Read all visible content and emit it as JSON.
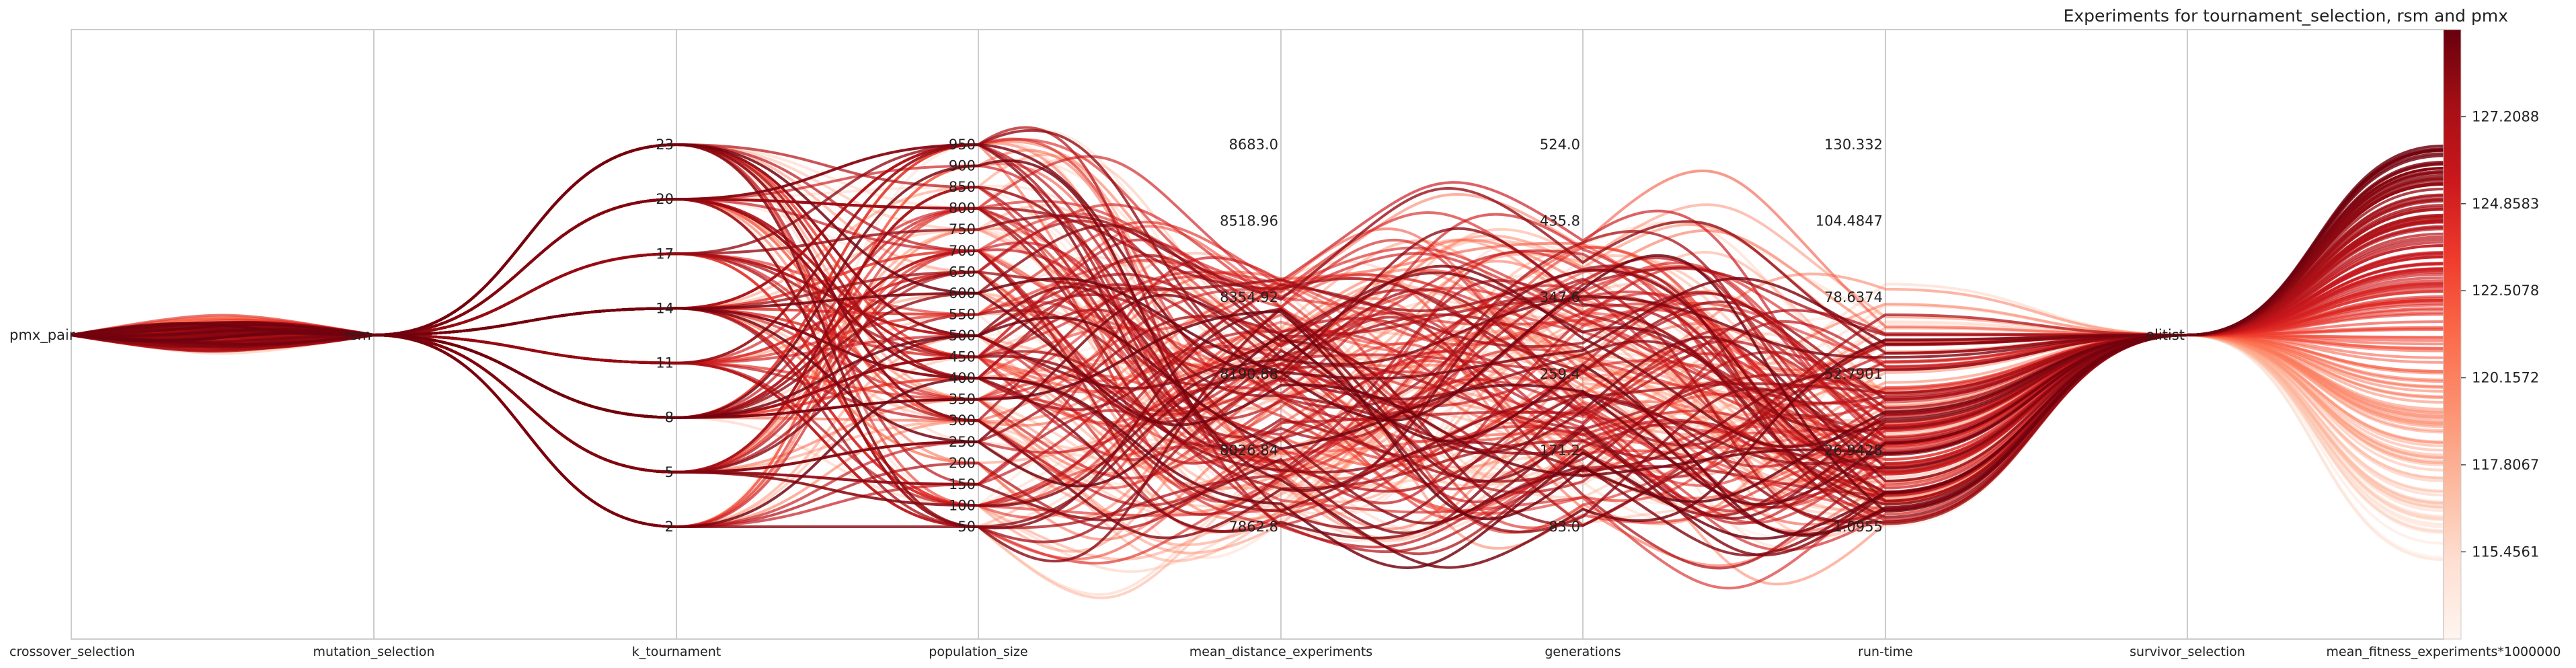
{
  "chart_data": {
    "type": "parallel_coordinates",
    "title": "Experiments for tournament_selection, rsm and pmx",
    "colormap": "Reds",
    "axes": [
      {
        "name": "crossover_selection",
        "ticks": [
          "pmx_pair"
        ],
        "values": [
          0
        ]
      },
      {
        "name": "mutation_selection",
        "ticks": [
          "rsm"
        ],
        "values": [
          0
        ]
      },
      {
        "name": "k_tournament",
        "ticks": [
          "23",
          "20",
          "17",
          "14",
          "11",
          "8",
          "5",
          "2"
        ],
        "values": [
          23,
          20,
          17,
          14,
          11,
          8,
          5,
          2
        ],
        "range": [
          2,
          23
        ]
      },
      {
        "name": "population_size",
        "ticks": [
          "950",
          "900",
          "850",
          "800",
          "750",
          "700",
          "650",
          "600",
          "550",
          "500",
          "450",
          "400",
          "350",
          "300",
          "250",
          "200",
          "150",
          "100",
          "50"
        ],
        "range": [
          50,
          950
        ]
      },
      {
        "name": "mean_distance_experiments",
        "ticks": [
          "8683.0",
          "8518.96",
          "8354.92",
          "8190.88",
          "8026.84",
          "7862.8"
        ],
        "range": [
          7862.8,
          8683.0
        ]
      },
      {
        "name": "generations",
        "ticks": [
          "524.0",
          "435.8",
          "347.6",
          "259.4",
          "171.2",
          "83.0"
        ],
        "range": [
          83.0,
          524.0
        ]
      },
      {
        "name": "run-time",
        "ticks": [
          "130.332",
          "104.4847",
          "78.6374",
          "52.7901",
          "26.9428",
          "1.0955"
        ],
        "range": [
          1.0955,
          130.332
        ]
      },
      {
        "name": "survivor_selection",
        "ticks": [
          "elitist"
        ],
        "values": [
          0
        ]
      },
      {
        "name": "mean_fitness_experiments*1000000",
        "ticks": [],
        "range": [
          113.1,
          129.56
        ]
      }
    ],
    "colorbar": {
      "ticks": [
        "127.2088",
        "124.8583",
        "122.5078",
        "120.1572",
        "117.8067",
        "115.4561"
      ]
    }
  }
}
